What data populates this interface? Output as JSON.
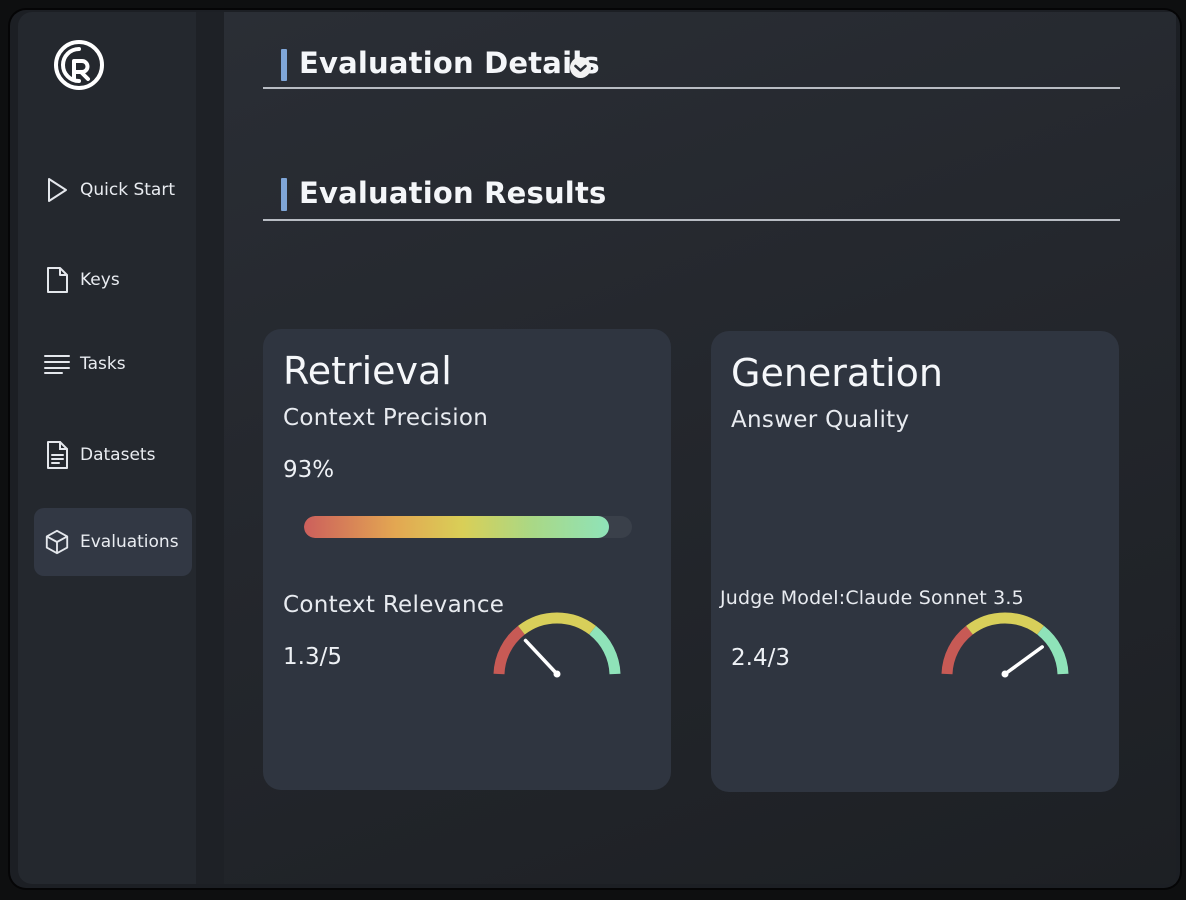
{
  "sidebar": {
    "items": [
      {
        "label": "Quick Start",
        "icon": "play-icon",
        "active": false
      },
      {
        "label": "Keys",
        "icon": "document-icon",
        "active": false
      },
      {
        "label": "Tasks",
        "icon": "list-icon",
        "active": false
      },
      {
        "label": "Datasets",
        "icon": "file-text-icon",
        "active": false
      },
      {
        "label": "Evaluations",
        "icon": "cube-icon",
        "active": true
      }
    ]
  },
  "sections": {
    "details_title": "Evaluation Details",
    "results_title": "Evaluation Results"
  },
  "retrieval": {
    "title": "Retrieval",
    "precision_label": "Context Precision",
    "precision_value": "93%",
    "precision_fraction": 0.93,
    "relevance_label": "Context Relevance",
    "relevance_value": "1.3/5",
    "relevance_score": 1.3,
    "relevance_max": 5
  },
  "generation": {
    "title": "Generation",
    "quality_label": "Answer Quality",
    "judge_label": "Judge Model:Claude Sonnet 3.5",
    "quality_value": "2.4/3",
    "quality_score": 2.4,
    "quality_max": 3
  },
  "colors": {
    "accent": "#7fa6d8",
    "gauge_low": "#c75a55",
    "gauge_mid": "#d8cf5a",
    "gauge_high": "#8fe3b9"
  }
}
